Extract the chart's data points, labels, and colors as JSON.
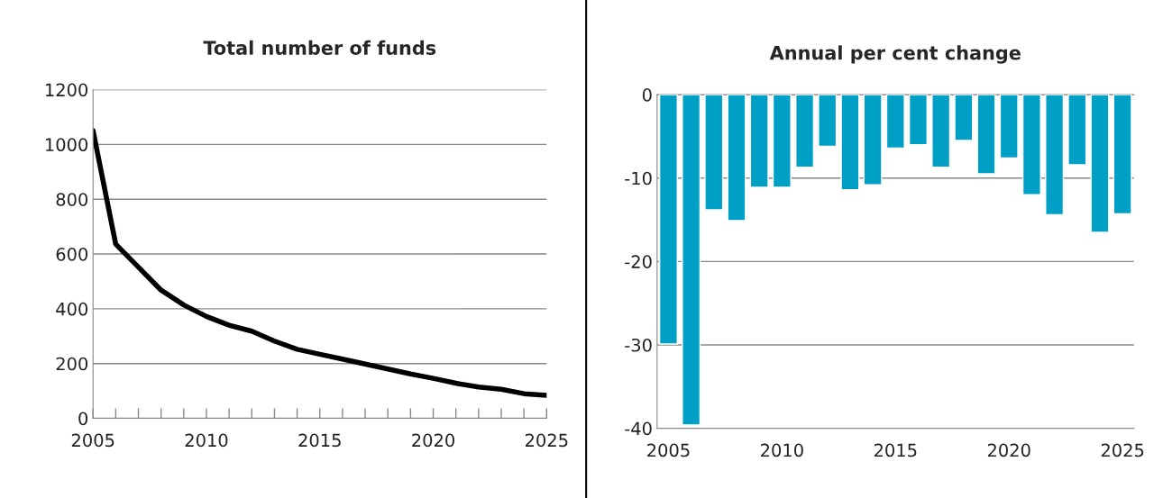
{
  "chart_data": [
    {
      "type": "line",
      "title": "Total number of funds",
      "x": [
        2005,
        2006,
        2007,
        2008,
        2009,
        2010,
        2011,
        2012,
        2013,
        2014,
        2015,
        2016,
        2017,
        2018,
        2019,
        2020,
        2021,
        2022,
        2023,
        2024,
        2025
      ],
      "series": [
        {
          "color": "#000000",
          "values": [
            1050,
            636,
            552,
            468,
            414,
            372,
            340,
            318,
            282,
            252,
            234,
            216,
            198,
            180,
            162,
            146,
            128,
            114,
            106,
            90,
            84
          ]
        }
      ],
      "xlim": [
        2005,
        2025
      ],
      "xticks": [
        2005,
        {
          "value": 2006,
          "label": null
        },
        {
          "value": 2007,
          "label": null
        },
        {
          "value": 2008,
          "label": null
        },
        {
          "value": 2009,
          "label": null
        },
        2010,
        {
          "value": 2011,
          "label": null
        },
        {
          "value": 2012,
          "label": null
        },
        {
          "value": 2013,
          "label": null
        },
        {
          "value": 2014,
          "label": null
        },
        2015,
        {
          "value": 2016,
          "label": null
        },
        {
          "value": 2017,
          "label": null
        },
        {
          "value": 2018,
          "label": null
        },
        {
          "value": 2019,
          "label": null
        },
        2020,
        {
          "value": 2021,
          "label": null
        },
        {
          "value": 2022,
          "label": null
        },
        {
          "value": 2023,
          "label": null
        },
        {
          "value": 2024,
          "label": null
        },
        2025
      ],
      "ylim": [
        0,
        1200
      ],
      "yticks": [
        0,
        200,
        400,
        600,
        800,
        1000,
        1200
      ],
      "grid": "y",
      "marker": "none",
      "line_style": "solid"
    },
    {
      "type": "bar",
      "title": "Annual per cent change",
      "x": [
        2005,
        2006,
        2007,
        2008,
        2009,
        2010,
        2011,
        2012,
        2013,
        2014,
        2015,
        2016,
        2017,
        2018,
        2019,
        2020,
        2021,
        2022,
        2023,
        2024,
        2025
      ],
      "series": [
        {
          "color": "#00a0c6",
          "values": [
            -29.9,
            -39.6,
            -13.8,
            -15.1,
            -11.1,
            -11.1,
            -8.7,
            -6.2,
            -11.4,
            -10.8,
            -6.4,
            -6.0,
            -8.7,
            -5.5,
            -9.5,
            -7.6,
            -12.0,
            -14.4,
            -8.4,
            -16.5,
            -14.3
          ]
        }
      ],
      "xlim": [
        2004.5,
        2025.5
      ],
      "xticks": [
        2005,
        2010,
        2015,
        2020,
        2025
      ],
      "ylim": [
        -40,
        0
      ],
      "yticks": [
        -40,
        -30,
        -20,
        -10,
        0
      ],
      "grid": "y"
    }
  ]
}
